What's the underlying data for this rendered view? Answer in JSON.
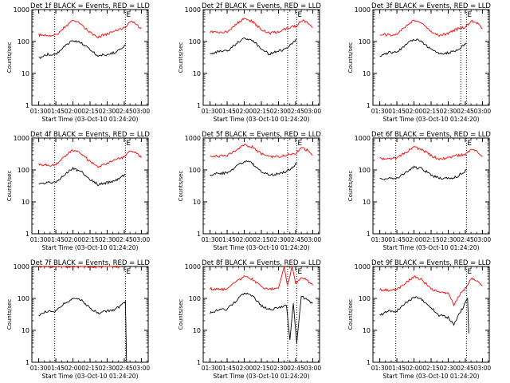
{
  "colors": {
    "events": "#000000",
    "lld": "#ff0000",
    "axis": "#000000",
    "background": "#ffffff"
  },
  "chart_data": [
    {
      "type": "line",
      "title": "Det 1f BLACK = Events, RED = LLD",
      "xlabel": "Start Time (03-Oct-10 01:24:20)",
      "ylabel": "Counts/sec",
      "x_ticks": [
        "01:30",
        "01:45",
        "02:00",
        "02:15",
        "02:30",
        "02:45",
        "03:00"
      ],
      "y_ticks": [
        "1",
        "10",
        "100",
        "1000"
      ],
      "y_scale": "log",
      "ylim": [
        1,
        1000
      ],
      "markers": [
        {
          "time": "01:44",
          "label": ""
        },
        {
          "time": "02:46",
          "label": "E"
        }
      ],
      "series": [
        {
          "name": "RED",
          "x": [
            "01:30",
            "01:38",
            "01:45",
            "01:52",
            "02:00",
            "02:07",
            "02:15",
            "02:22",
            "02:30",
            "02:37",
            "02:45",
            "02:50",
            "02:55",
            "03:00"
          ],
          "y": [
            160,
            150,
            160,
            270,
            450,
            350,
            190,
            140,
            170,
            230,
            260,
            430,
            370,
            250
          ]
        },
        {
          "name": "BLACK",
          "x": [
            "01:30",
            "01:38",
            "01:45",
            "01:52",
            "02:00",
            "02:07",
            "02:15",
            "02:22",
            "02:30",
            "02:37",
            "02:42",
            "02:46"
          ],
          "y": [
            30,
            40,
            40,
            70,
            110,
            95,
            55,
            35,
            40,
            45,
            60,
            80
          ]
        }
      ]
    },
    {
      "type": "line",
      "title": "Det 2f BLACK = Events, RED = LLD",
      "xlabel": "Start Time (03-Oct-10 01:24:20)",
      "ylabel": "Counts/sec",
      "x_ticks": [
        "01:30",
        "01:45",
        "02:00",
        "02:15",
        "02:30",
        "02:45",
        "03:00"
      ],
      "y_ticks": [
        "1",
        "10",
        "100",
        "1000"
      ],
      "y_scale": "log",
      "ylim": [
        1,
        1000
      ],
      "markers": [
        {
          "time": "02:38",
          "label": ""
        },
        {
          "time": "02:46",
          "label": "E"
        }
      ],
      "series": [
        {
          "name": "RED",
          "x": [
            "01:30",
            "01:38",
            "01:45",
            "01:52",
            "02:00",
            "02:07",
            "02:15",
            "02:22",
            "02:30",
            "02:37",
            "02:45",
            "02:50",
            "02:55",
            "03:00"
          ],
          "y": [
            200,
            190,
            200,
            330,
            550,
            420,
            240,
            180,
            200,
            260,
            300,
            470,
            400,
            270
          ]
        },
        {
          "name": "BLACK",
          "x": [
            "01:30",
            "01:38",
            "01:45",
            "01:52",
            "02:00",
            "02:07",
            "02:15",
            "02:22",
            "02:30",
            "02:37",
            "02:42",
            "02:46"
          ],
          "y": [
            40,
            50,
            50,
            80,
            130,
            110,
            60,
            40,
            50,
            60,
            90,
            120
          ]
        }
      ]
    },
    {
      "type": "line",
      "title": "Det 3f BLACK = Events, RED = LLD",
      "xlabel": "Start Time (03-Oct-10 01:24:20)",
      "ylabel": "Counts/sec",
      "x_ticks": [
        "01:30",
        "01:45",
        "02:00",
        "02:15",
        "02:30",
        "02:45",
        "03:00"
      ],
      "y_ticks": [
        "1",
        "10",
        "100",
        "1000"
      ],
      "y_scale": "log",
      "ylim": [
        1,
        1000
      ],
      "markers": [
        {
          "time": "02:41",
          "label": ""
        },
        {
          "time": "02:46",
          "label": "E"
        }
      ],
      "series": [
        {
          "name": "RED",
          "x": [
            "01:30",
            "01:38",
            "01:45",
            "01:52",
            "02:00",
            "02:07",
            "02:15",
            "02:22",
            "02:30",
            "02:37",
            "02:45",
            "02:50",
            "02:55",
            "03:00"
          ],
          "y": [
            170,
            160,
            170,
            280,
            480,
            380,
            200,
            150,
            180,
            240,
            280,
            450,
            380,
            260
          ]
        },
        {
          "name": "BLACK",
          "x": [
            "01:30",
            "01:38",
            "01:45",
            "01:52",
            "02:00",
            "02:07",
            "02:15",
            "02:22",
            "02:30",
            "02:37",
            "02:42",
            "02:46"
          ],
          "y": [
            35,
            45,
            45,
            75,
            120,
            100,
            55,
            40,
            45,
            50,
            70,
            90
          ]
        }
      ]
    },
    {
      "type": "line",
      "title": "Det 4f BLACK = Events, RED = LLD",
      "xlabel": "Start Time (03-Oct-10 01:24:20)",
      "ylabel": "Counts/sec",
      "x_ticks": [
        "01:30",
        "01:45",
        "02:00",
        "02:15",
        "02:30",
        "02:45",
        "03:00"
      ],
      "y_ticks": [
        "1",
        "10",
        "100",
        "1000"
      ],
      "y_scale": "log",
      "ylim": [
        1,
        1000
      ],
      "markers": [
        {
          "time": "01:44",
          "label": ""
        },
        {
          "time": "02:46",
          "label": "E"
        }
      ],
      "series": [
        {
          "name": "RED",
          "x": [
            "01:30",
            "01:38",
            "01:45",
            "01:52",
            "02:00",
            "02:07",
            "02:15",
            "02:22",
            "02:30",
            "02:37",
            "02:45",
            "02:50",
            "02:55",
            "03:00"
          ],
          "y": [
            150,
            140,
            150,
            260,
            430,
            340,
            180,
            130,
            160,
            220,
            250,
            420,
            360,
            240
          ]
        },
        {
          "name": "BLACK",
          "x": [
            "01:30",
            "01:38",
            "01:45",
            "01:52",
            "02:00",
            "02:07",
            "02:15",
            "02:22",
            "02:30",
            "02:37",
            "02:42",
            "02:46"
          ],
          "y": [
            35,
            40,
            40,
            70,
            110,
            90,
            50,
            35,
            40,
            45,
            60,
            75
          ]
        }
      ]
    },
    {
      "type": "line",
      "title": "Det 5f BLACK = Events, RED = LLD",
      "xlabel": "Start Time (03-Oct-10 01:24:20)",
      "ylabel": "Counts/sec",
      "x_ticks": [
        "01:30",
        "01:45",
        "02:00",
        "02:15",
        "02:30",
        "02:45",
        "03:00"
      ],
      "y_ticks": [
        "1",
        "10",
        "100",
        "1000"
      ],
      "y_scale": "log",
      "ylim": [
        1,
        1000
      ],
      "markers": [
        {
          "time": "02:38",
          "label": ""
        },
        {
          "time": "02:46",
          "label": "E"
        }
      ],
      "series": [
        {
          "name": "RED",
          "x": [
            "01:30",
            "01:38",
            "01:45",
            "01:52",
            "02:00",
            "02:07",
            "02:15",
            "02:22",
            "02:30",
            "02:37",
            "02:45",
            "02:50",
            "02:55",
            "03:00"
          ],
          "y": [
            280,
            270,
            280,
            400,
            620,
            520,
            320,
            250,
            260,
            300,
            330,
            500,
            420,
            290
          ]
        },
        {
          "name": "BLACK",
          "x": [
            "01:30",
            "01:38",
            "01:45",
            "01:52",
            "02:00",
            "02:07",
            "02:15",
            "02:22",
            "02:30",
            "02:37",
            "02:42",
            "02:46"
          ],
          "y": [
            70,
            80,
            80,
            120,
            190,
            160,
            90,
            70,
            75,
            90,
            120,
            160
          ]
        }
      ]
    },
    {
      "type": "line",
      "title": "Det 6f BLACK = Events, RED = LLD",
      "xlabel": "Start Time (03-Oct-10 01:24:20)",
      "ylabel": "Counts/sec",
      "x_ticks": [
        "01:30",
        "01:45",
        "02:00",
        "02:15",
        "02:30",
        "02:45",
        "03:00"
      ],
      "y_ticks": [
        "1",
        "10",
        "100",
        "1000"
      ],
      "y_scale": "log",
      "ylim": [
        1,
        1000
      ],
      "markers": [
        {
          "time": "01:44",
          "label": ""
        },
        {
          "time": "02:46",
          "label": "E"
        }
      ],
      "series": [
        {
          "name": "RED",
          "x": [
            "01:30",
            "01:38",
            "01:45",
            "01:52",
            "02:00",
            "02:07",
            "02:15",
            "02:22",
            "02:30",
            "02:37",
            "02:45",
            "02:50",
            "02:55",
            "03:00"
          ],
          "y": [
            230,
            220,
            240,
            340,
            520,
            440,
            280,
            220,
            240,
            280,
            300,
            460,
            380,
            260
          ]
        },
        {
          "name": "BLACK",
          "x": [
            "01:30",
            "01:38",
            "01:45",
            "01:52",
            "02:00",
            "02:07",
            "02:15",
            "02:22",
            "02:30",
            "02:37",
            "02:42",
            "02:46"
          ],
          "y": [
            50,
            55,
            55,
            80,
            120,
            110,
            70,
            55,
            55,
            60,
            80,
            100
          ]
        }
      ]
    },
    {
      "type": "line",
      "title": "Det 7f BLACK = Events, RED = LLD",
      "xlabel": "Start Time (03-Oct-10 01:24:20)",
      "ylabel": "Counts/sec",
      "x_ticks": [
        "01:30",
        "01:45",
        "02:00",
        "02:15",
        "02:30",
        "02:45",
        "03:00"
      ],
      "y_ticks": [
        "1",
        "10",
        "100",
        "1000"
      ],
      "y_scale": "log",
      "ylim": [
        1,
        1000
      ],
      "markers": [
        {
          "time": "01:44",
          "label": ""
        },
        {
          "time": "02:46",
          "label": "E"
        }
      ],
      "series": [
        {
          "name": "RED",
          "x": [
            "01:30",
            "01:45",
            "02:00",
            "02:15",
            "02:30",
            "02:42"
          ],
          "y": [
            1000,
            1000,
            1000,
            1000,
            1000,
            1000
          ]
        },
        {
          "name": "BLACK",
          "x": [
            "01:30",
            "01:38",
            "01:45",
            "01:52",
            "02:00",
            "02:07",
            "02:15",
            "02:22",
            "02:30",
            "02:37",
            "02:42",
            "02:46",
            "02:47"
          ],
          "y": [
            30,
            40,
            40,
            70,
            100,
            90,
            50,
            35,
            40,
            45,
            60,
            80,
            1
          ]
        }
      ]
    },
    {
      "type": "line",
      "title": "Det 8f BLACK = Events, RED = LLD",
      "xlabel": "Start Time (03-Oct-10 01:24:20)",
      "ylabel": "Counts/sec",
      "x_ticks": [
        "01:30",
        "01:45",
        "02:00",
        "02:15",
        "02:30",
        "02:45",
        "03:00"
      ],
      "y_ticks": [
        "1",
        "10",
        "100",
        "1000"
      ],
      "y_scale": "log",
      "ylim": [
        1,
        1000
      ],
      "markers": [
        {
          "time": "02:38",
          "label": ""
        },
        {
          "time": "02:46",
          "label": "E"
        }
      ],
      "series": [
        {
          "name": "RED",
          "x": [
            "01:30",
            "01:38",
            "01:45",
            "01:52",
            "02:00",
            "02:07",
            "02:15",
            "02:22",
            "02:30",
            "02:35",
            "02:38",
            "02:42",
            "02:45",
            "02:50",
            "02:55",
            "03:00"
          ],
          "y": [
            200,
            190,
            200,
            310,
            500,
            400,
            230,
            190,
            210,
            1000,
            250,
            1000,
            300,
            450,
            370,
            260
          ]
        },
        {
          "name": "BLACK",
          "x": [
            "01:30",
            "01:38",
            "01:45",
            "01:52",
            "02:00",
            "02:07",
            "02:15",
            "02:22",
            "02:30",
            "02:37",
            "02:40",
            "02:43",
            "02:46",
            "02:50",
            "02:55",
            "03:00"
          ],
          "y": [
            35,
            45,
            45,
            80,
            150,
            120,
            60,
            45,
            50,
            60,
            5,
            70,
            4,
            120,
            90,
            70
          ]
        }
      ]
    },
    {
      "type": "line",
      "title": "Det 9f BLACK = Events, RED = LLD",
      "xlabel": "Start Time (03-Oct-10 01:24:20)",
      "ylabel": "Counts/sec",
      "x_ticks": [
        "01:30",
        "01:45",
        "02:00",
        "02:15",
        "02:30",
        "02:45",
        "03:00"
      ],
      "y_ticks": [
        "1",
        "10",
        "100",
        "1000"
      ],
      "y_scale": "log",
      "ylim": [
        1,
        1000
      ],
      "markers": [
        {
          "time": "01:44",
          "label": ""
        },
        {
          "time": "02:46",
          "label": "E"
        }
      ],
      "series": [
        {
          "name": "RED",
          "x": [
            "01:30",
            "01:38",
            "01:45",
            "01:52",
            "02:00",
            "02:07",
            "02:15",
            "02:22",
            "02:30",
            "02:35",
            "02:40",
            "02:45",
            "02:50",
            "02:55",
            "03:00"
          ],
          "y": [
            190,
            180,
            190,
            300,
            480,
            380,
            200,
            150,
            150,
            60,
            130,
            200,
            430,
            360,
            250
          ]
        },
        {
          "name": "BLACK",
          "x": [
            "01:30",
            "01:38",
            "01:45",
            "01:52",
            "02:00",
            "02:07",
            "02:15",
            "02:22",
            "02:30",
            "02:35",
            "02:40",
            "02:45",
            "02:47",
            "02:48"
          ],
          "y": [
            30,
            40,
            40,
            70,
            110,
            90,
            50,
            30,
            25,
            15,
            35,
            70,
            100,
            8
          ]
        }
      ]
    }
  ]
}
